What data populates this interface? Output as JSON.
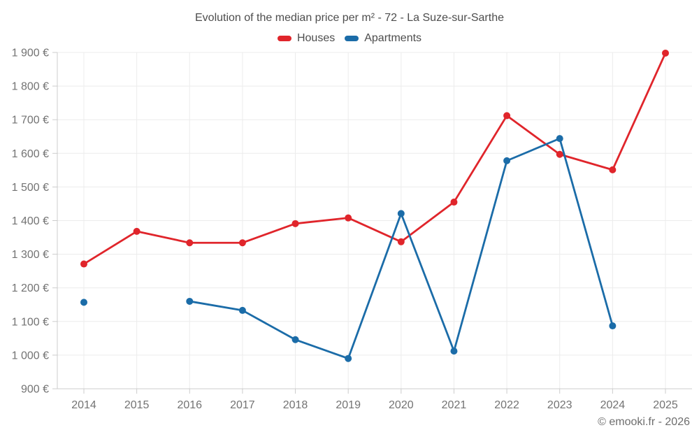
{
  "header": {
    "title": "Evolution of the median price per m² - 72 - La Suze-sur-Sarthe"
  },
  "legend": {
    "items": [
      {
        "id": "houses",
        "label": "Houses",
        "color": "#e0252b"
      },
      {
        "id": "apartments",
        "label": "Apartments",
        "color": "#1b6ca8"
      }
    ]
  },
  "footer": {
    "copyright": "© emooki.fr - 2026"
  },
  "colors": {
    "grid": "#ececec",
    "axis": "#cccccc",
    "tick": "#cccccc",
    "tick_label": "#737373",
    "background": "#ffffff"
  },
  "chart_data": {
    "type": "line",
    "title": "Evolution of the median price per m² - 72 - La Suze-sur-Sarthe",
    "x": [
      2014,
      2015,
      2016,
      2017,
      2018,
      2019,
      2020,
      2021,
      2022,
      2023,
      2024,
      2025
    ],
    "series": [
      {
        "name": "Houses",
        "color": "#e0252b",
        "values": [
          1271,
          1368,
          1334,
          1334,
          1391,
          1408,
          1337,
          1455,
          1712,
          1597,
          1551,
          1898
        ]
      },
      {
        "name": "Apartments",
        "color": "#1b6ca8",
        "values": [
          1157,
          null,
          1160,
          1133,
          1046,
          990,
          1421,
          1012,
          1578,
          1644,
          1087,
          null
        ]
      }
    ],
    "xlabel": "",
    "ylabel": "",
    "ylim": [
      900,
      1900
    ],
    "ytick_step": 100,
    "ytick_suffix": " €",
    "grid": true,
    "legend_position": "top"
  }
}
